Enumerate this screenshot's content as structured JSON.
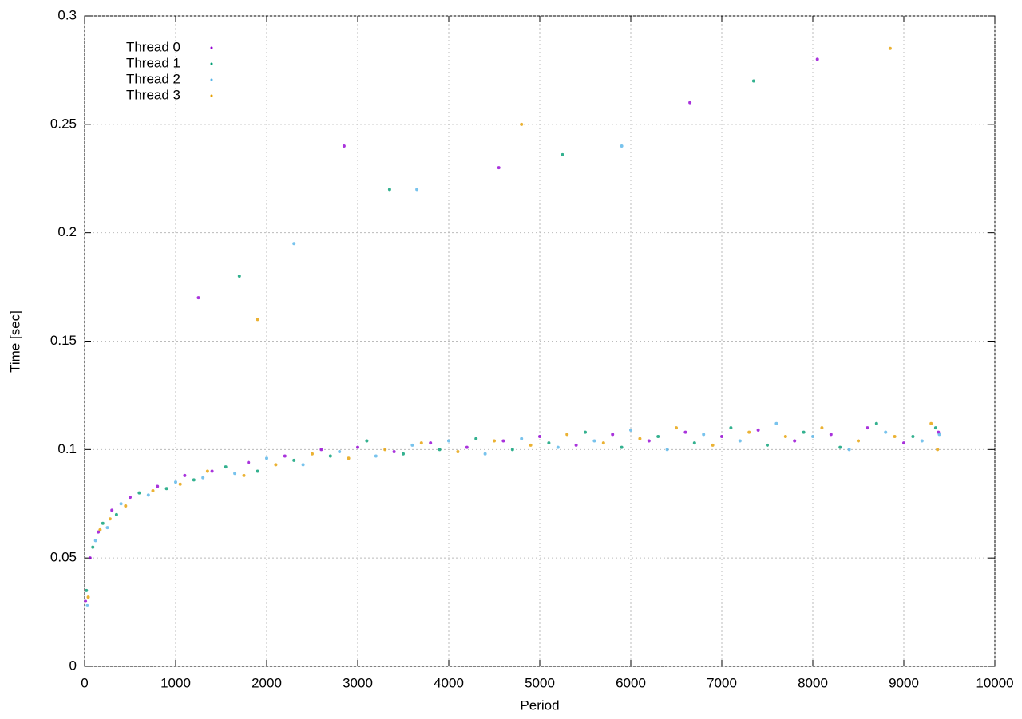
{
  "chart_data": {
    "type": "scatter",
    "xlabel": "Period",
    "ylabel": "Time [sec]",
    "xlim": [
      0,
      10000
    ],
    "ylim": [
      0,
      0.3
    ],
    "xticks": [
      0,
      1000,
      2000,
      3000,
      4000,
      5000,
      6000,
      7000,
      8000,
      9000,
      10000
    ],
    "yticks": [
      0,
      0.05,
      0.1,
      0.15,
      0.2,
      0.25,
      0.3
    ],
    "grid": true,
    "legend": "top-left",
    "series": [
      {
        "name": "Thread 0",
        "color": "#9400d3",
        "x": [
          10,
          60,
          150,
          300,
          500,
          800,
          1100,
          1400,
          1800,
          2200,
          2600,
          3000,
          3400,
          3800,
          4200,
          4600,
          5000,
          5400,
          5800,
          6200,
          6600,
          7000,
          7400,
          7800,
          8200,
          8600,
          9000,
          9380,
          1250,
          2850,
          4550,
          6650,
          8050
        ],
        "values": [
          0.03,
          0.05,
          0.062,
          0.072,
          0.078,
          0.083,
          0.088,
          0.09,
          0.094,
          0.097,
          0.1,
          0.101,
          0.099,
          0.103,
          0.101,
          0.104,
          0.106,
          0.102,
          0.107,
          0.104,
          0.108,
          0.106,
          0.109,
          0.104,
          0.107,
          0.11,
          0.103,
          0.108,
          0.17,
          0.24,
          0.23,
          0.26,
          0.28
        ]
      },
      {
        "name": "Thread 1",
        "color": "#009e73",
        "x": [
          20,
          90,
          200,
          350,
          600,
          900,
          1200,
          1550,
          1900,
          2300,
          2700,
          3100,
          3500,
          3900,
          4300,
          4700,
          5100,
          5500,
          5900,
          6300,
          6700,
          7100,
          7500,
          7900,
          8300,
          8700,
          9100,
          9350,
          1700,
          3350,
          5250,
          7350
        ],
        "values": [
          0.035,
          0.055,
          0.066,
          0.07,
          0.08,
          0.082,
          0.086,
          0.092,
          0.09,
          0.095,
          0.097,
          0.104,
          0.098,
          0.1,
          0.105,
          0.1,
          0.103,
          0.108,
          0.101,
          0.106,
          0.103,
          0.11,
          0.102,
          0.108,
          0.101,
          0.112,
          0.106,
          0.11,
          0.18,
          0.22,
          0.236,
          0.27
        ]
      },
      {
        "name": "Thread 2",
        "color": "#56b4e9",
        "x": [
          30,
          120,
          250,
          400,
          700,
          1000,
          1300,
          1650,
          2000,
          2400,
          2800,
          3200,
          3600,
          4000,
          4400,
          4800,
          5200,
          5600,
          6000,
          6400,
          6800,
          7200,
          7600,
          8000,
          8400,
          8800,
          9200,
          9390,
          2300,
          3650,
          5900
        ],
        "values": [
          0.028,
          0.058,
          0.064,
          0.075,
          0.079,
          0.085,
          0.087,
          0.089,
          0.096,
          0.093,
          0.099,
          0.097,
          0.102,
          0.104,
          0.098,
          0.105,
          0.101,
          0.104,
          0.109,
          0.1,
          0.107,
          0.104,
          0.112,
          0.106,
          0.1,
          0.108,
          0.104,
          0.107,
          0.195,
          0.22,
          0.24
        ]
      },
      {
        "name": "Thread 3",
        "color": "#e69f00",
        "x": [
          40,
          170,
          280,
          450,
          750,
          1050,
          1350,
          1750,
          2100,
          2500,
          2900,
          3300,
          3700,
          4100,
          4500,
          4900,
          5300,
          5700,
          6100,
          6500,
          6900,
          7300,
          7700,
          8100,
          8500,
          8900,
          9300,
          9370,
          1900,
          4800,
          8850
        ],
        "values": [
          0.032,
          0.063,
          0.068,
          0.074,
          0.081,
          0.084,
          0.09,
          0.088,
          0.093,
          0.098,
          0.096,
          0.1,
          0.103,
          0.099,
          0.104,
          0.102,
          0.107,
          0.103,
          0.105,
          0.11,
          0.102,
          0.108,
          0.106,
          0.11,
          0.104,
          0.106,
          0.112,
          0.1,
          0.16,
          0.25,
          0.285
        ]
      }
    ]
  }
}
